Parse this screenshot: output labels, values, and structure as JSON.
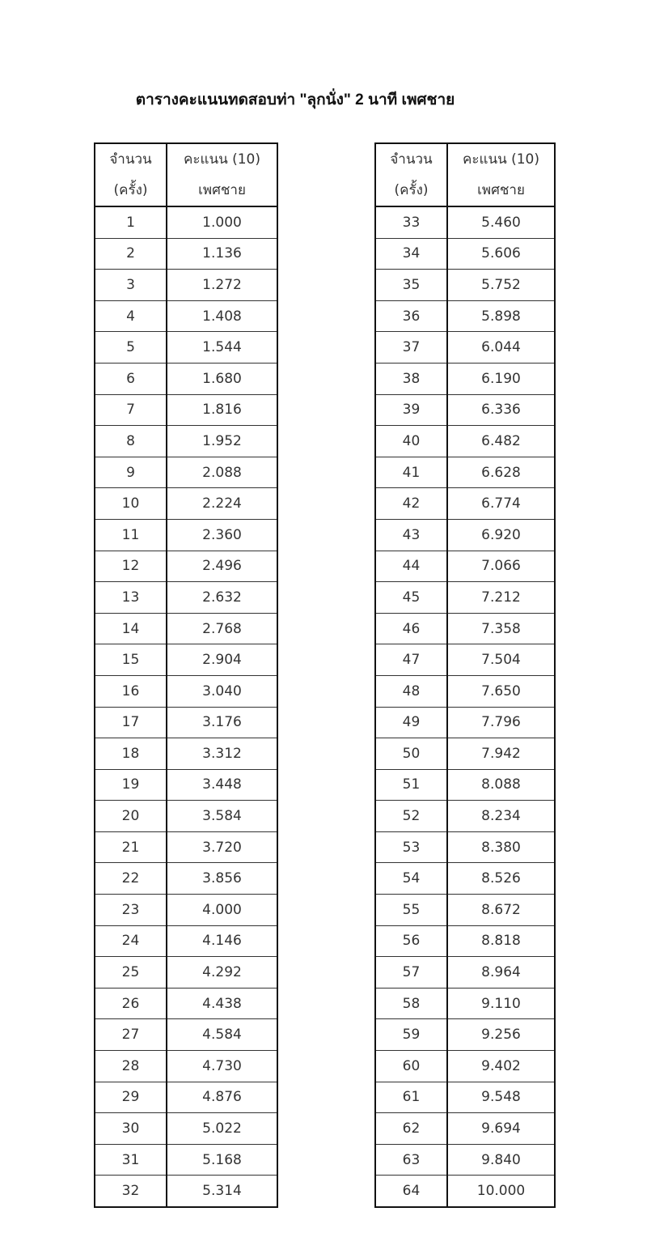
{
  "title": "ตารางคะแนนทดสอบท่า \"ลุกนั่ง\" 2 นาที เพศชาย",
  "header": {
    "count_line1": "จำนวน",
    "count_line2": "(ครั้ง)",
    "score_line1": "คะแนน (10)",
    "score_line2": "เพศชาย"
  },
  "tables": [
    {
      "rows": [
        [
          "1",
          "1.000"
        ],
        [
          "2",
          "1.136"
        ],
        [
          "3",
          "1.272"
        ],
        [
          "4",
          "1.408"
        ],
        [
          "5",
          "1.544"
        ],
        [
          "6",
          "1.680"
        ],
        [
          "7",
          "1.816"
        ],
        [
          "8",
          "1.952"
        ],
        [
          "9",
          "2.088"
        ],
        [
          "10",
          "2.224"
        ],
        [
          "11",
          "2.360"
        ],
        [
          "12",
          "2.496"
        ],
        [
          "13",
          "2.632"
        ],
        [
          "14",
          "2.768"
        ],
        [
          "15",
          "2.904"
        ],
        [
          "16",
          "3.040"
        ],
        [
          "17",
          "3.176"
        ],
        [
          "18",
          "3.312"
        ],
        [
          "19",
          "3.448"
        ],
        [
          "20",
          "3.584"
        ],
        [
          "21",
          "3.720"
        ],
        [
          "22",
          "3.856"
        ],
        [
          "23",
          "4.000"
        ],
        [
          "24",
          "4.146"
        ],
        [
          "25",
          "4.292"
        ],
        [
          "26",
          "4.438"
        ],
        [
          "27",
          "4.584"
        ],
        [
          "28",
          "4.730"
        ],
        [
          "29",
          "4.876"
        ],
        [
          "30",
          "5.022"
        ],
        [
          "31",
          "5.168"
        ],
        [
          "32",
          "5.314"
        ]
      ]
    },
    {
      "rows": [
        [
          "33",
          "5.460"
        ],
        [
          "34",
          "5.606"
        ],
        [
          "35",
          "5.752"
        ],
        [
          "36",
          "5.898"
        ],
        [
          "37",
          "6.044"
        ],
        [
          "38",
          "6.190"
        ],
        [
          "39",
          "6.336"
        ],
        [
          "40",
          "6.482"
        ],
        [
          "41",
          "6.628"
        ],
        [
          "42",
          "6.774"
        ],
        [
          "43",
          "6.920"
        ],
        [
          "44",
          "7.066"
        ],
        [
          "45",
          "7.212"
        ],
        [
          "46",
          "7.358"
        ],
        [
          "47",
          "7.504"
        ],
        [
          "48",
          "7.650"
        ],
        [
          "49",
          "7.796"
        ],
        [
          "50",
          "7.942"
        ],
        [
          "51",
          "8.088"
        ],
        [
          "52",
          "8.234"
        ],
        [
          "53",
          "8.380"
        ],
        [
          "54",
          "8.526"
        ],
        [
          "55",
          "8.672"
        ],
        [
          "56",
          "8.818"
        ],
        [
          "57",
          "8.964"
        ],
        [
          "58",
          "9.110"
        ],
        [
          "59",
          "9.256"
        ],
        [
          "60",
          "9.402"
        ],
        [
          "61",
          "9.548"
        ],
        [
          "62",
          "9.694"
        ],
        [
          "63",
          "9.840"
        ],
        [
          "64",
          "10.000"
        ]
      ]
    }
  ]
}
